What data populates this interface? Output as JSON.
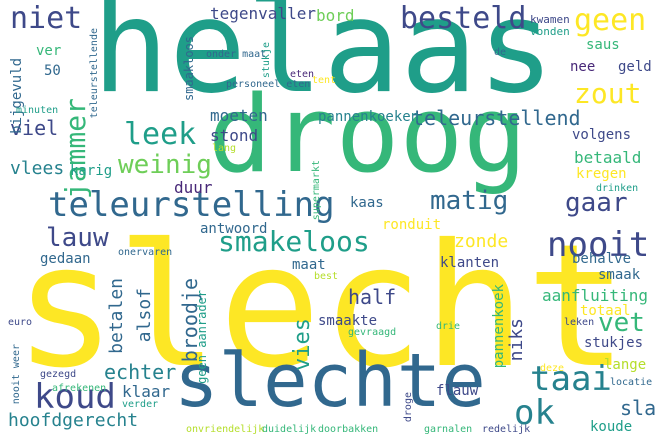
{
  "palette": {
    "yellow": "#fde725",
    "lime": "#b5de2b",
    "green": "#6ece58",
    "teal_green": "#35b779",
    "teal": "#1f9e89",
    "blue_teal": "#26828e",
    "steel": "#31688e",
    "indigo": "#3e4989",
    "purple": "#482878",
    "dark": "#440154"
  },
  "words": [
    {
      "text": "slecht",
      "color": "yellow"
    },
    {
      "text": "helaas",
      "color": "teal"
    },
    {
      "text": "droog",
      "color": "teal_green"
    },
    {
      "text": "slechte",
      "color": "steel"
    },
    {
      "text": "teleurstelling",
      "color": "steel"
    },
    {
      "text": "smakeloos",
      "color": "teal"
    },
    {
      "text": "besteld",
      "color": "indigo"
    },
    {
      "text": "niet",
      "color": "indigo"
    },
    {
      "text": "leek",
      "color": "teal"
    },
    {
      "text": "weinig",
      "color": "green"
    },
    {
      "text": "jammer",
      "color": "teal_green"
    },
    {
      "text": "zout",
      "color": "yellow"
    },
    {
      "text": "geen",
      "color": "yellow"
    },
    {
      "text": "nooit",
      "color": "indigo"
    },
    {
      "text": "koud",
      "color": "indigo"
    },
    {
      "text": "taai",
      "color": "blue_teal"
    },
    {
      "text": "ok",
      "color": "blue_teal"
    },
    {
      "text": "vet",
      "color": "teal_green"
    },
    {
      "text": "gaar",
      "color": "indigo"
    },
    {
      "text": "matig",
      "color": "steel"
    },
    {
      "text": "lauw",
      "color": "indigo"
    },
    {
      "text": "teleurstellend",
      "color": "steel"
    },
    {
      "text": "tegenvaller",
      "color": "indigo"
    },
    {
      "text": "bord",
      "color": "green"
    },
    {
      "text": "hoofdgerecht",
      "color": "blue_teal"
    },
    {
      "text": "echter",
      "color": "blue_teal"
    },
    {
      "text": "vies",
      "color": "teal"
    },
    {
      "text": "broodje",
      "color": "steel"
    },
    {
      "text": "betalen",
      "color": "steel"
    },
    {
      "text": "alsof",
      "color": "steel"
    },
    {
      "text": "half",
      "color": "indigo"
    },
    {
      "text": "zonde",
      "color": "yellow"
    },
    {
      "text": "moeten",
      "color": "steel"
    },
    {
      "text": "stond",
      "color": "indigo"
    },
    {
      "text": "viel",
      "color": "indigo"
    },
    {
      "text": "vlees",
      "color": "blue_teal"
    },
    {
      "text": "karig",
      "color": "teal"
    },
    {
      "text": "duur",
      "color": "purple"
    },
    {
      "text": "pannenkoeken",
      "color": "blue_teal"
    },
    {
      "text": "betaald",
      "color": "teal_green"
    },
    {
      "text": "volgens",
      "color": "indigo"
    },
    {
      "text": "kregen",
      "color": "yellow"
    },
    {
      "text": "smaak",
      "color": "steel"
    },
    {
      "text": "aanfluiting",
      "color": "teal_green"
    },
    {
      "text": "totaal",
      "color": "yellow"
    },
    {
      "text": "stukjes",
      "color": "indigo"
    },
    {
      "text": "lange",
      "color": "lime"
    },
    {
      "text": "sla",
      "color": "steel"
    },
    {
      "text": "koude",
      "color": "teal"
    },
    {
      "text": "niks",
      "color": "indigo"
    },
    {
      "text": "pannenkoek",
      "color": "teal_green"
    },
    {
      "text": "klaar",
      "color": "steel"
    },
    {
      "text": "flauw",
      "color": "indigo"
    },
    {
      "text": "smaakte",
      "color": "indigo"
    },
    {
      "text": "ronduit",
      "color": "yellow"
    },
    {
      "text": "antwoord",
      "color": "steel"
    },
    {
      "text": "gedaan",
      "color": "steel"
    },
    {
      "text": "maat",
      "color": "steel"
    },
    {
      "text": "kaas",
      "color": "steel"
    },
    {
      "text": "klanten",
      "color": "indigo"
    },
    {
      "text": "behalve",
      "color": "steel"
    },
    {
      "text": "geen aanrader",
      "color": "teal"
    },
    {
      "text": "ver",
      "color": "teal_green"
    },
    {
      "text": "50",
      "color": "steel"
    },
    {
      "text": "bijgevuld",
      "color": "steel"
    },
    {
      "text": "saus",
      "color": "teal_green"
    },
    {
      "text": "nee",
      "color": "purple"
    },
    {
      "text": "geld",
      "color": "indigo"
    },
    {
      "text": "smaakloos",
      "color": "steel"
    },
    {
      "text": "onder maat",
      "color": "steel"
    },
    {
      "text": "stukje",
      "color": "teal"
    },
    {
      "text": "kwamen",
      "color": "indigo"
    },
    {
      "text": "vonden",
      "color": "teal"
    },
    {
      "text": "de",
      "color": "steel"
    },
    {
      "text": "teleurstellende",
      "color": "steel"
    },
    {
      "text": "eten",
      "color": "purple"
    },
    {
      "text": "personeel eten",
      "color": "steel"
    },
    {
      "text": "tent",
      "color": "yellow"
    },
    {
      "text": "minuten",
      "color": "teal"
    },
    {
      "text": "lang",
      "color": "lime"
    },
    {
      "text": "supermarkt",
      "color": "teal_green"
    },
    {
      "text": "drinken",
      "color": "teal"
    },
    {
      "text": "onervaren",
      "color": "steel"
    },
    {
      "text": "best",
      "color": "lime"
    },
    {
      "text": "euro",
      "color": "indigo"
    },
    {
      "text": "gevraagd",
      "color": "teal_green"
    },
    {
      "text": "drie",
      "color": "teal_green"
    },
    {
      "text": "leken",
      "color": "indigo"
    },
    {
      "text": "nooit weer",
      "color": "steel"
    },
    {
      "text": "gezegd",
      "color": "indigo"
    },
    {
      "text": "afrekenen",
      "color": "teal_green"
    },
    {
      "text": "verder",
      "color": "teal"
    },
    {
      "text": "deze",
      "color": "yellow"
    },
    {
      "text": "locatie",
      "color": "steel"
    },
    {
      "text": "droge",
      "color": "indigo"
    },
    {
      "text": "onvriendelijk",
      "color": "lime"
    },
    {
      "text": "duidelijk",
      "color": "teal_green"
    },
    {
      "text": "doorbakken",
      "color": "teal_green"
    },
    {
      "text": "garnalen",
      "color": "teal_green"
    },
    {
      "text": "redelijk",
      "color": "indigo"
    }
  ]
}
